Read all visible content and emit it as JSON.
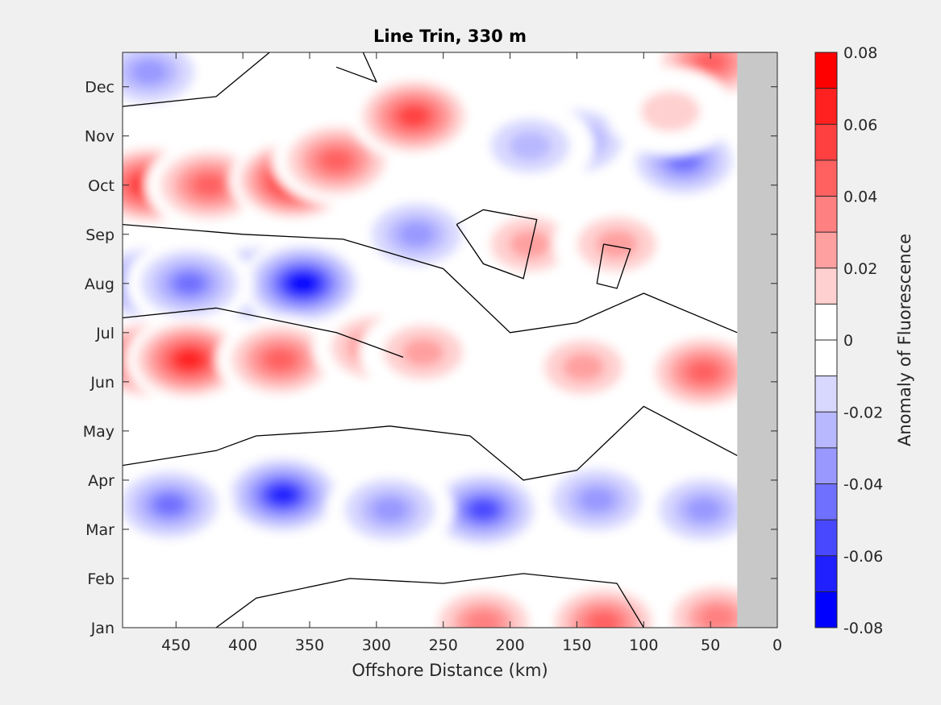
{
  "chart_data": {
    "type": "heatmap",
    "subtype": "filled-contour",
    "title": "Line Trin, 330 m",
    "xlabel": "Offshore Distance (km)",
    "ylabel": "",
    "x_direction": "reversed",
    "xlim": [
      0,
      490
    ],
    "x_ticks": [
      450,
      400,
      350,
      300,
      250,
      200,
      150,
      100,
      50,
      0
    ],
    "y_ticks": [
      "Jan",
      "Feb",
      "Mar",
      "Apr",
      "May",
      "Jun",
      "Jul",
      "Aug",
      "Sep",
      "Oct",
      "Nov",
      "Dec"
    ],
    "y_tick_months": [
      0,
      1,
      2,
      3,
      4,
      5,
      6,
      7,
      8,
      9,
      10,
      11
    ],
    "ylim_months": [
      0,
      11.7
    ],
    "no_data_x_range": [
      0,
      30
    ],
    "no_data_color": "#c8c8c8",
    "zero_contour_color": "#000000",
    "colorbar": {
      "label": "Anomaly of Fluorescence",
      "clim": [
        -0.08,
        0.08
      ],
      "tick_values": [
        0.08,
        0.06,
        0.04,
        0.02,
        0,
        -0.02,
        -0.04,
        -0.06,
        -0.08
      ],
      "tick_labels": [
        "0.08",
        "0.06",
        "0.04",
        "0.02",
        "0",
        "-0.02",
        "-0.04",
        "-0.06",
        "-0.08"
      ],
      "levels": [
        {
          "min": 0.07,
          "max": 0.08,
          "color": "#ff0000"
        },
        {
          "min": 0.06,
          "max": 0.07,
          "color": "#ff2020"
        },
        {
          "min": 0.05,
          "max": 0.06,
          "color": "#ff4040"
        },
        {
          "min": 0.04,
          "max": 0.05,
          "color": "#ff6060"
        },
        {
          "min": 0.03,
          "max": 0.04,
          "color": "#ff8080"
        },
        {
          "min": 0.02,
          "max": 0.03,
          "color": "#ffa0a0"
        },
        {
          "min": 0.01,
          "max": 0.02,
          "color": "#ffd0d0"
        },
        {
          "min": 0.0,
          "max": 0.01,
          "color": "#ffffff"
        },
        {
          "min": -0.01,
          "max": 0.0,
          "color": "#ffffff"
        },
        {
          "min": -0.02,
          "max": -0.01,
          "color": "#d8d8ff"
        },
        {
          "min": -0.03,
          "max": -0.02,
          "color": "#b8b8ff"
        },
        {
          "min": -0.04,
          "max": -0.03,
          "color": "#9898ff"
        },
        {
          "min": -0.05,
          "max": -0.04,
          "color": "#7070ff"
        },
        {
          "min": -0.06,
          "max": -0.05,
          "color": "#4848ff"
        },
        {
          "min": -0.07,
          "max": -0.06,
          "color": "#2020ff"
        },
        {
          "min": -0.08,
          "max": -0.07,
          "color": "#0000ff"
        }
      ]
    },
    "anomaly_features": [
      {
        "x": 470,
        "month": 9.0,
        "value": 0.072
      },
      {
        "x": 425,
        "month": 9.0,
        "value": 0.05
      },
      {
        "x": 362,
        "month": 9.1,
        "value": 0.075
      },
      {
        "x": 330,
        "month": 9.5,
        "value": 0.045
      },
      {
        "x": 272,
        "month": 10.4,
        "value": 0.058
      },
      {
        "x": 388,
        "month": 7.0,
        "value": -0.07
      },
      {
        "x": 355,
        "month": 7.0,
        "value": -0.078
      },
      {
        "x": 470,
        "month": 7.0,
        "value": -0.055
      },
      {
        "x": 440,
        "month": 7.0,
        "value": -0.045
      },
      {
        "x": 270,
        "month": 8.0,
        "value": -0.042
      },
      {
        "x": 470,
        "month": 5.45,
        "value": 0.068
      },
      {
        "x": 440,
        "month": 5.45,
        "value": 0.072
      },
      {
        "x": 372,
        "month": 5.45,
        "value": 0.052
      },
      {
        "x": 300,
        "month": 5.7,
        "value": 0.035
      },
      {
        "x": 265,
        "month": 5.6,
        "value": 0.025
      },
      {
        "x": 55,
        "month": 5.2,
        "value": 0.048
      },
      {
        "x": 145,
        "month": 5.3,
        "value": 0.025
      },
      {
        "x": 370,
        "month": 2.7,
        "value": -0.068
      },
      {
        "x": 455,
        "month": 2.5,
        "value": -0.045
      },
      {
        "x": 220,
        "month": 2.4,
        "value": -0.055
      },
      {
        "x": 290,
        "month": 2.4,
        "value": -0.035
      },
      {
        "x": 135,
        "month": 2.6,
        "value": -0.04
      },
      {
        "x": 55,
        "month": 2.4,
        "value": -0.035
      },
      {
        "x": 470,
        "month": 11.3,
        "value": -0.035
      },
      {
        "x": 70,
        "month": 9.5,
        "value": -0.045
      },
      {
        "x": 150,
        "month": 9.9,
        "value": -0.035
      },
      {
        "x": 185,
        "month": 9.8,
        "value": -0.03
      },
      {
        "x": 185,
        "month": 7.8,
        "value": 0.025
      },
      {
        "x": 50,
        "month": 11.5,
        "value": 0.045
      },
      {
        "x": 130,
        "month": 0.1,
        "value": 0.045
      },
      {
        "x": 220,
        "month": 0.1,
        "value": 0.035
      },
      {
        "x": 45,
        "month": 0.2,
        "value": 0.035
      },
      {
        "x": 80,
        "month": 10.5,
        "value": 0.022
      },
      {
        "x": 120,
        "month": 7.8,
        "value": 0.025
      }
    ]
  }
}
